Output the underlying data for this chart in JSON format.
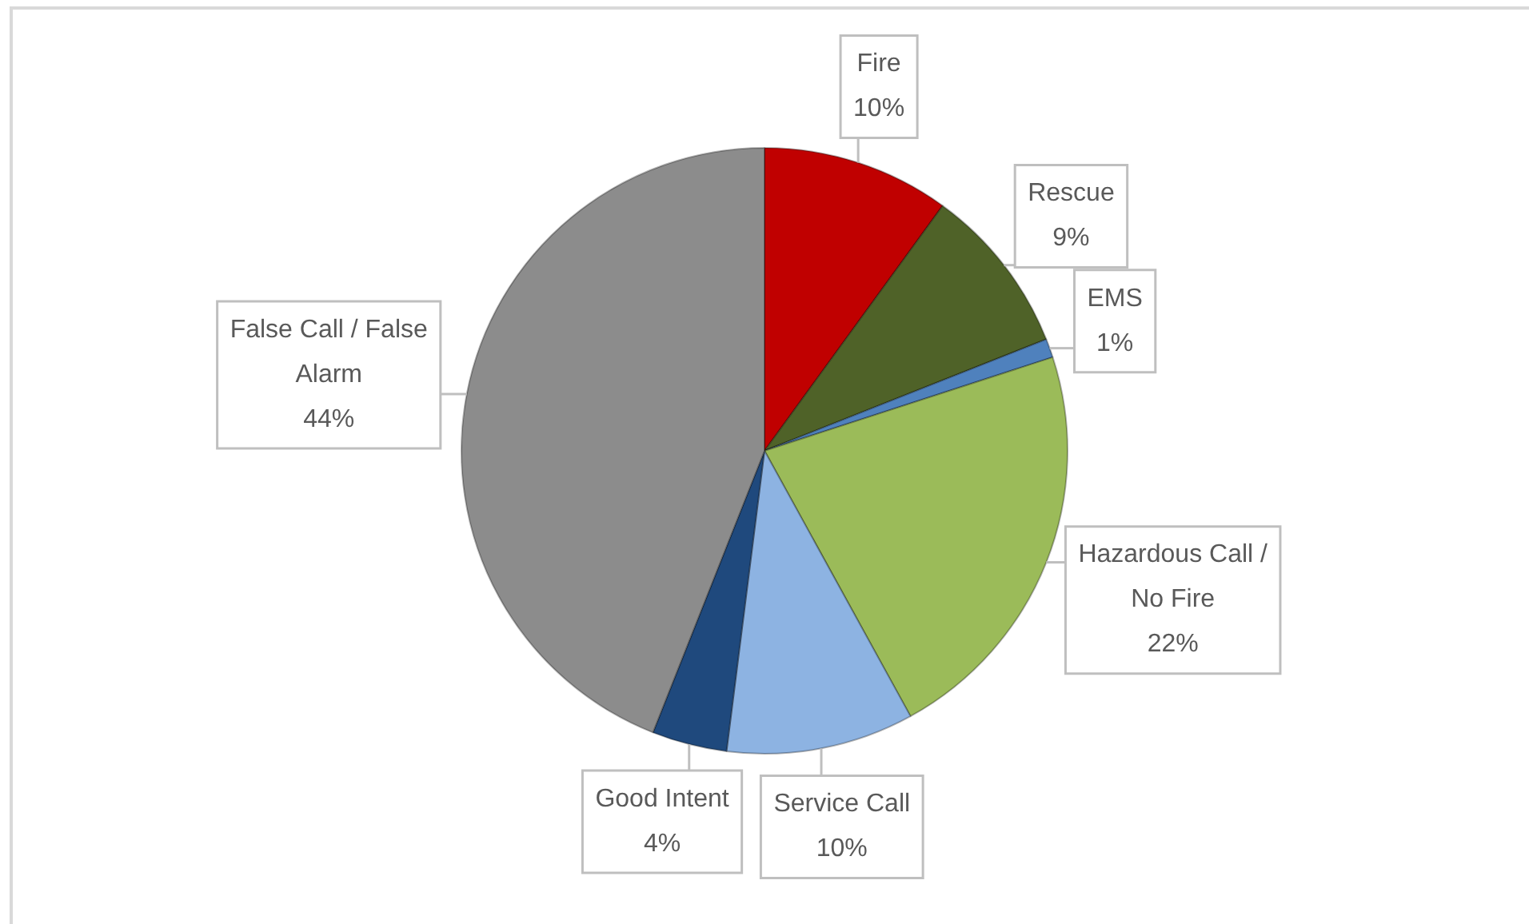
{
  "chart_data": {
    "type": "pie",
    "categories": [
      "Fire",
      "Rescue",
      "EMS",
      "Hazardous Call / No Fire",
      "Service Call",
      "Good Intent",
      "False Call / False Alarm"
    ],
    "values": [
      10,
      9,
      1,
      22,
      10,
      4,
      44
    ],
    "colors": [
      "#c00000",
      "#4f6228",
      "#4f81bd",
      "#9bbb59",
      "#8db3e2",
      "#1f497d",
      "#8c8c8c"
    ],
    "value_labels": [
      "10%",
      "9%",
      "1%",
      "22%",
      "10%",
      "4%",
      "44%"
    ]
  }
}
